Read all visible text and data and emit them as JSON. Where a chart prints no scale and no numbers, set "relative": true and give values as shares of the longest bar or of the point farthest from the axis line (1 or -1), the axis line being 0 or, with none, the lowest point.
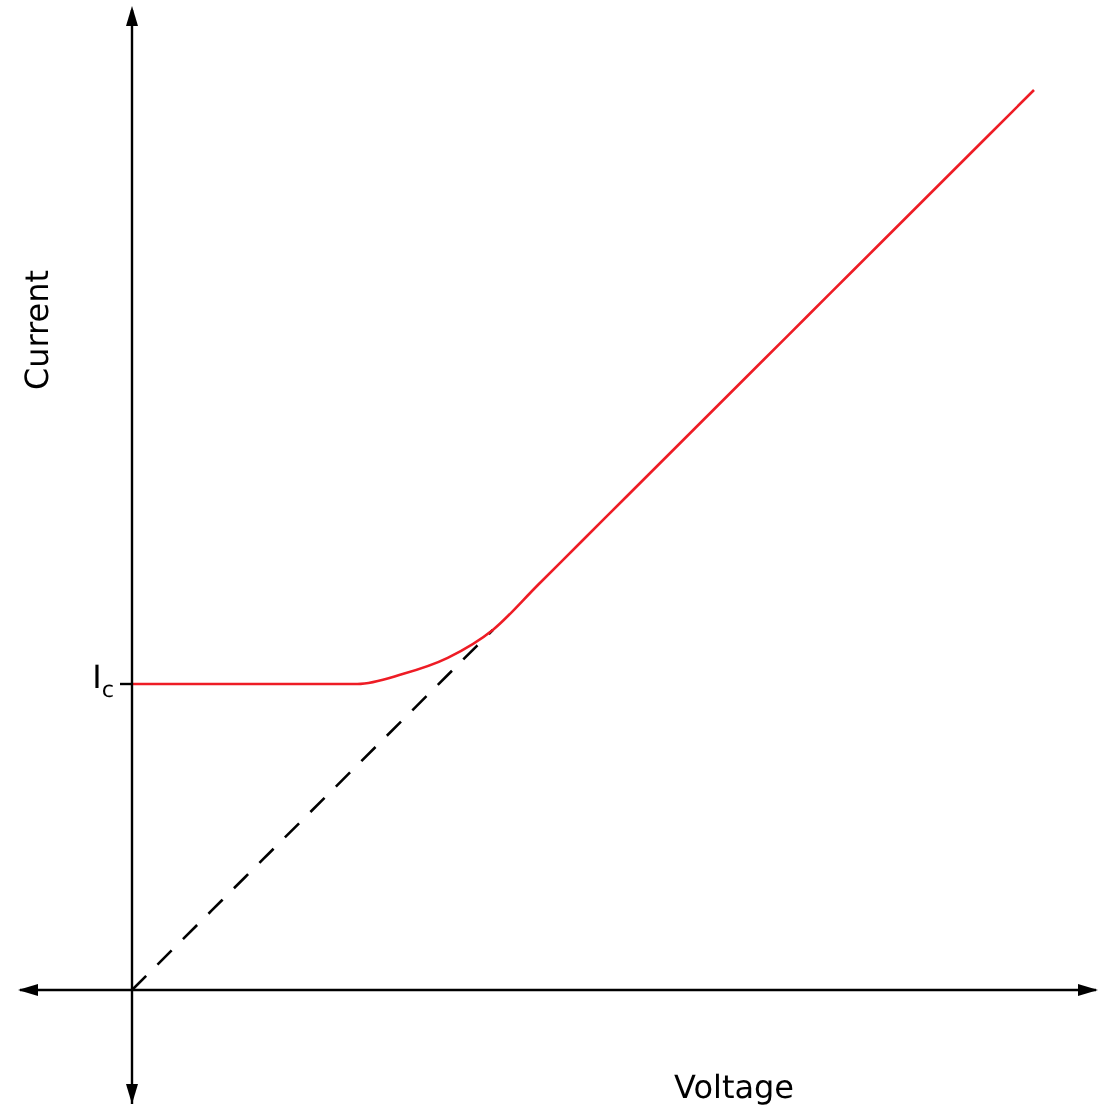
{
  "chart_data": {
    "type": "line",
    "relative": true,
    "xlabel": "Voltage",
    "ylabel": "Current",
    "legend": false,
    "marker": "none",
    "categories": [
      null,
      null,
      null,
      null,
      null,
      null,
      null,
      null,
      null,
      null,
      null,
      null,
      null,
      null,
      null,
      null,
      null,
      null,
      null,
      null,
      null
    ],
    "annotations": [
      "I$_{c}$"
    ],
    "series": [
      {
        "color": "#ee1c25",
        "line_style": "solid",
        "values": [
          0.34,
          0.34,
          0.34,
          0.34,
          0.34,
          0.34,
          0.351,
          0.369,
          0.4,
          0.45,
          0.5,
          0.55,
          0.6,
          0.65,
          0.7,
          0.75,
          0.8,
          0.85,
          0.9,
          0.95,
          1.0
        ]
      },
      {
        "color": "#000000",
        "line_style": "dashed",
        "values": [
          0,
          0.05,
          0.1,
          0.15,
          0.2,
          0.25,
          0.3,
          0.35,
          0.4,
          null,
          null,
          null,
          null,
          null,
          null,
          null,
          null,
          null,
          null,
          null,
          null
        ]
      }
    ]
  }
}
